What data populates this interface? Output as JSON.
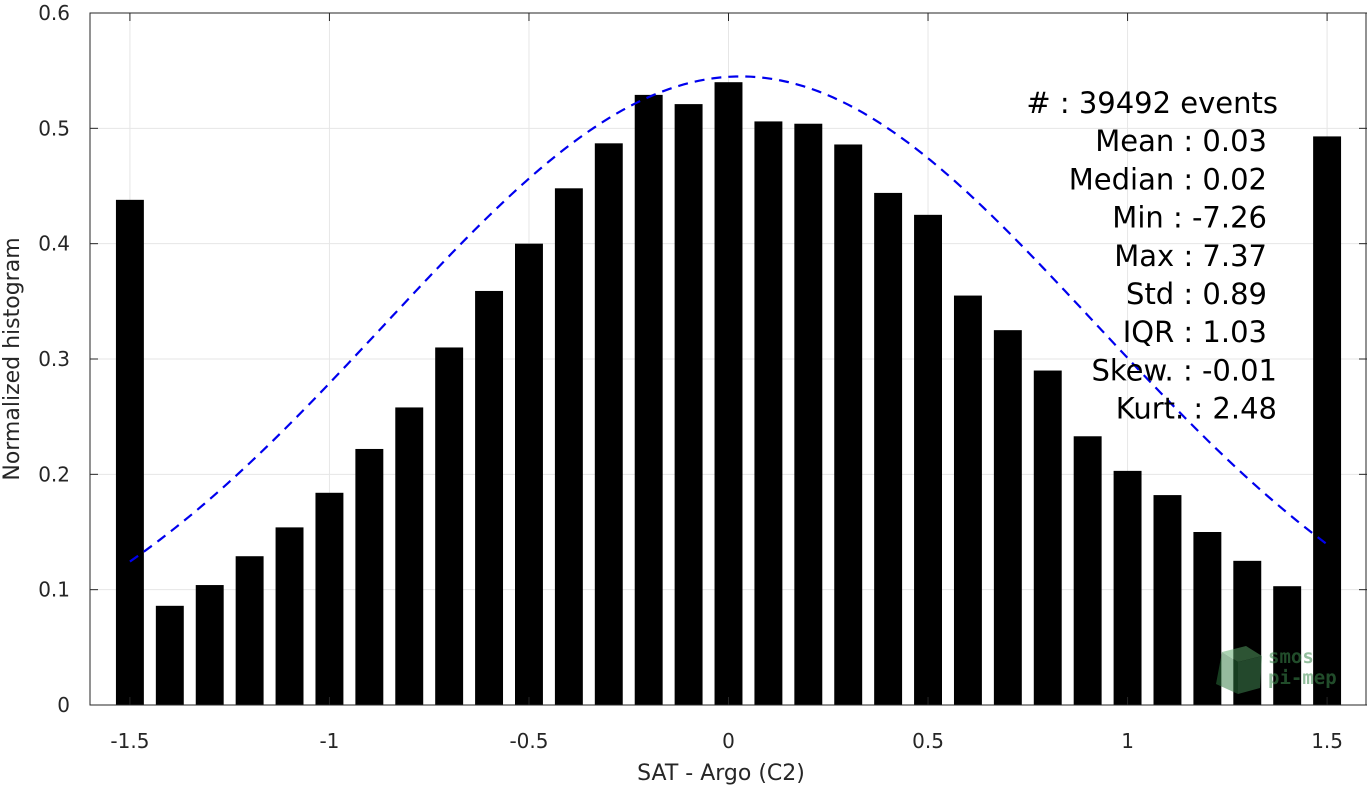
{
  "chart_data": {
    "type": "bar",
    "xlabel": "SAT - Argo (C2)",
    "ylabel": "Normalized histogram",
    "xlim": [
      -1.6,
      1.6
    ],
    "ylim": [
      0,
      0.6
    ],
    "xticks": [
      -1.5,
      -1,
      -0.5,
      0,
      0.5,
      1,
      1.5
    ],
    "xtick_labels": [
      "-1.5",
      "-1",
      "-0.5",
      "0",
      "0.5",
      "1",
      "1.5"
    ],
    "yticks": [
      0,
      0.1,
      0.2,
      0.3,
      0.4,
      0.5,
      0.6
    ],
    "ytick_labels": [
      "0",
      "0.1",
      "0.2",
      "0.3",
      "0.4",
      "0.5",
      "0.6"
    ],
    "grid": true,
    "bar_color": "#000000",
    "bar_width": 0.07,
    "bars": {
      "x": [
        -1.5,
        -1.4,
        -1.3,
        -1.2,
        -1.1,
        -1.0,
        -0.9,
        -0.8,
        -0.7,
        -0.6,
        -0.5,
        -0.4,
        -0.3,
        -0.2,
        -0.1,
        0.0,
        0.1,
        0.2,
        0.3,
        0.4,
        0.5,
        0.6,
        0.7,
        0.8,
        0.9,
        1.0,
        1.1,
        1.2,
        1.3,
        1.4,
        1.5
      ],
      "values": [
        0.438,
        0.086,
        0.104,
        0.129,
        0.154,
        0.184,
        0.222,
        0.258,
        0.31,
        0.359,
        0.4,
        0.448,
        0.487,
        0.529,
        0.521,
        0.54,
        0.506,
        0.504,
        0.486,
        0.444,
        0.425,
        0.355,
        0.325,
        0.29,
        0.233,
        0.203,
        0.182,
        0.15,
        0.125,
        0.103,
        0.493
      ]
    },
    "fit_curve": {
      "type": "gaussian",
      "color": "#0000ee",
      "style": "dashed",
      "amplitude": 0.545,
      "mean": 0.03,
      "std": 0.89,
      "x_range": [
        -1.5,
        1.5
      ]
    },
    "stats": [
      {
        "label": "#  ",
        "value": "39492 events"
      },
      {
        "label": "Mean",
        "value": "0.03"
      },
      {
        "label": "Median",
        "value": "0.02"
      },
      {
        "label": "Min",
        "value": "-7.26"
      },
      {
        "label": "Max",
        "value": "7.37"
      },
      {
        "label": "Std",
        "value": "0.89"
      },
      {
        "label": "IQR",
        "value": "1.03"
      },
      {
        "label": "Skew.",
        "value": "-0.01"
      },
      {
        "label": "Kurt.",
        "value": "2.48"
      }
    ]
  },
  "watermark": {
    "line1": "smos",
    "line2": "pi-mep",
    "icon": "cube-logo-icon",
    "color": "#3c8a4e"
  }
}
